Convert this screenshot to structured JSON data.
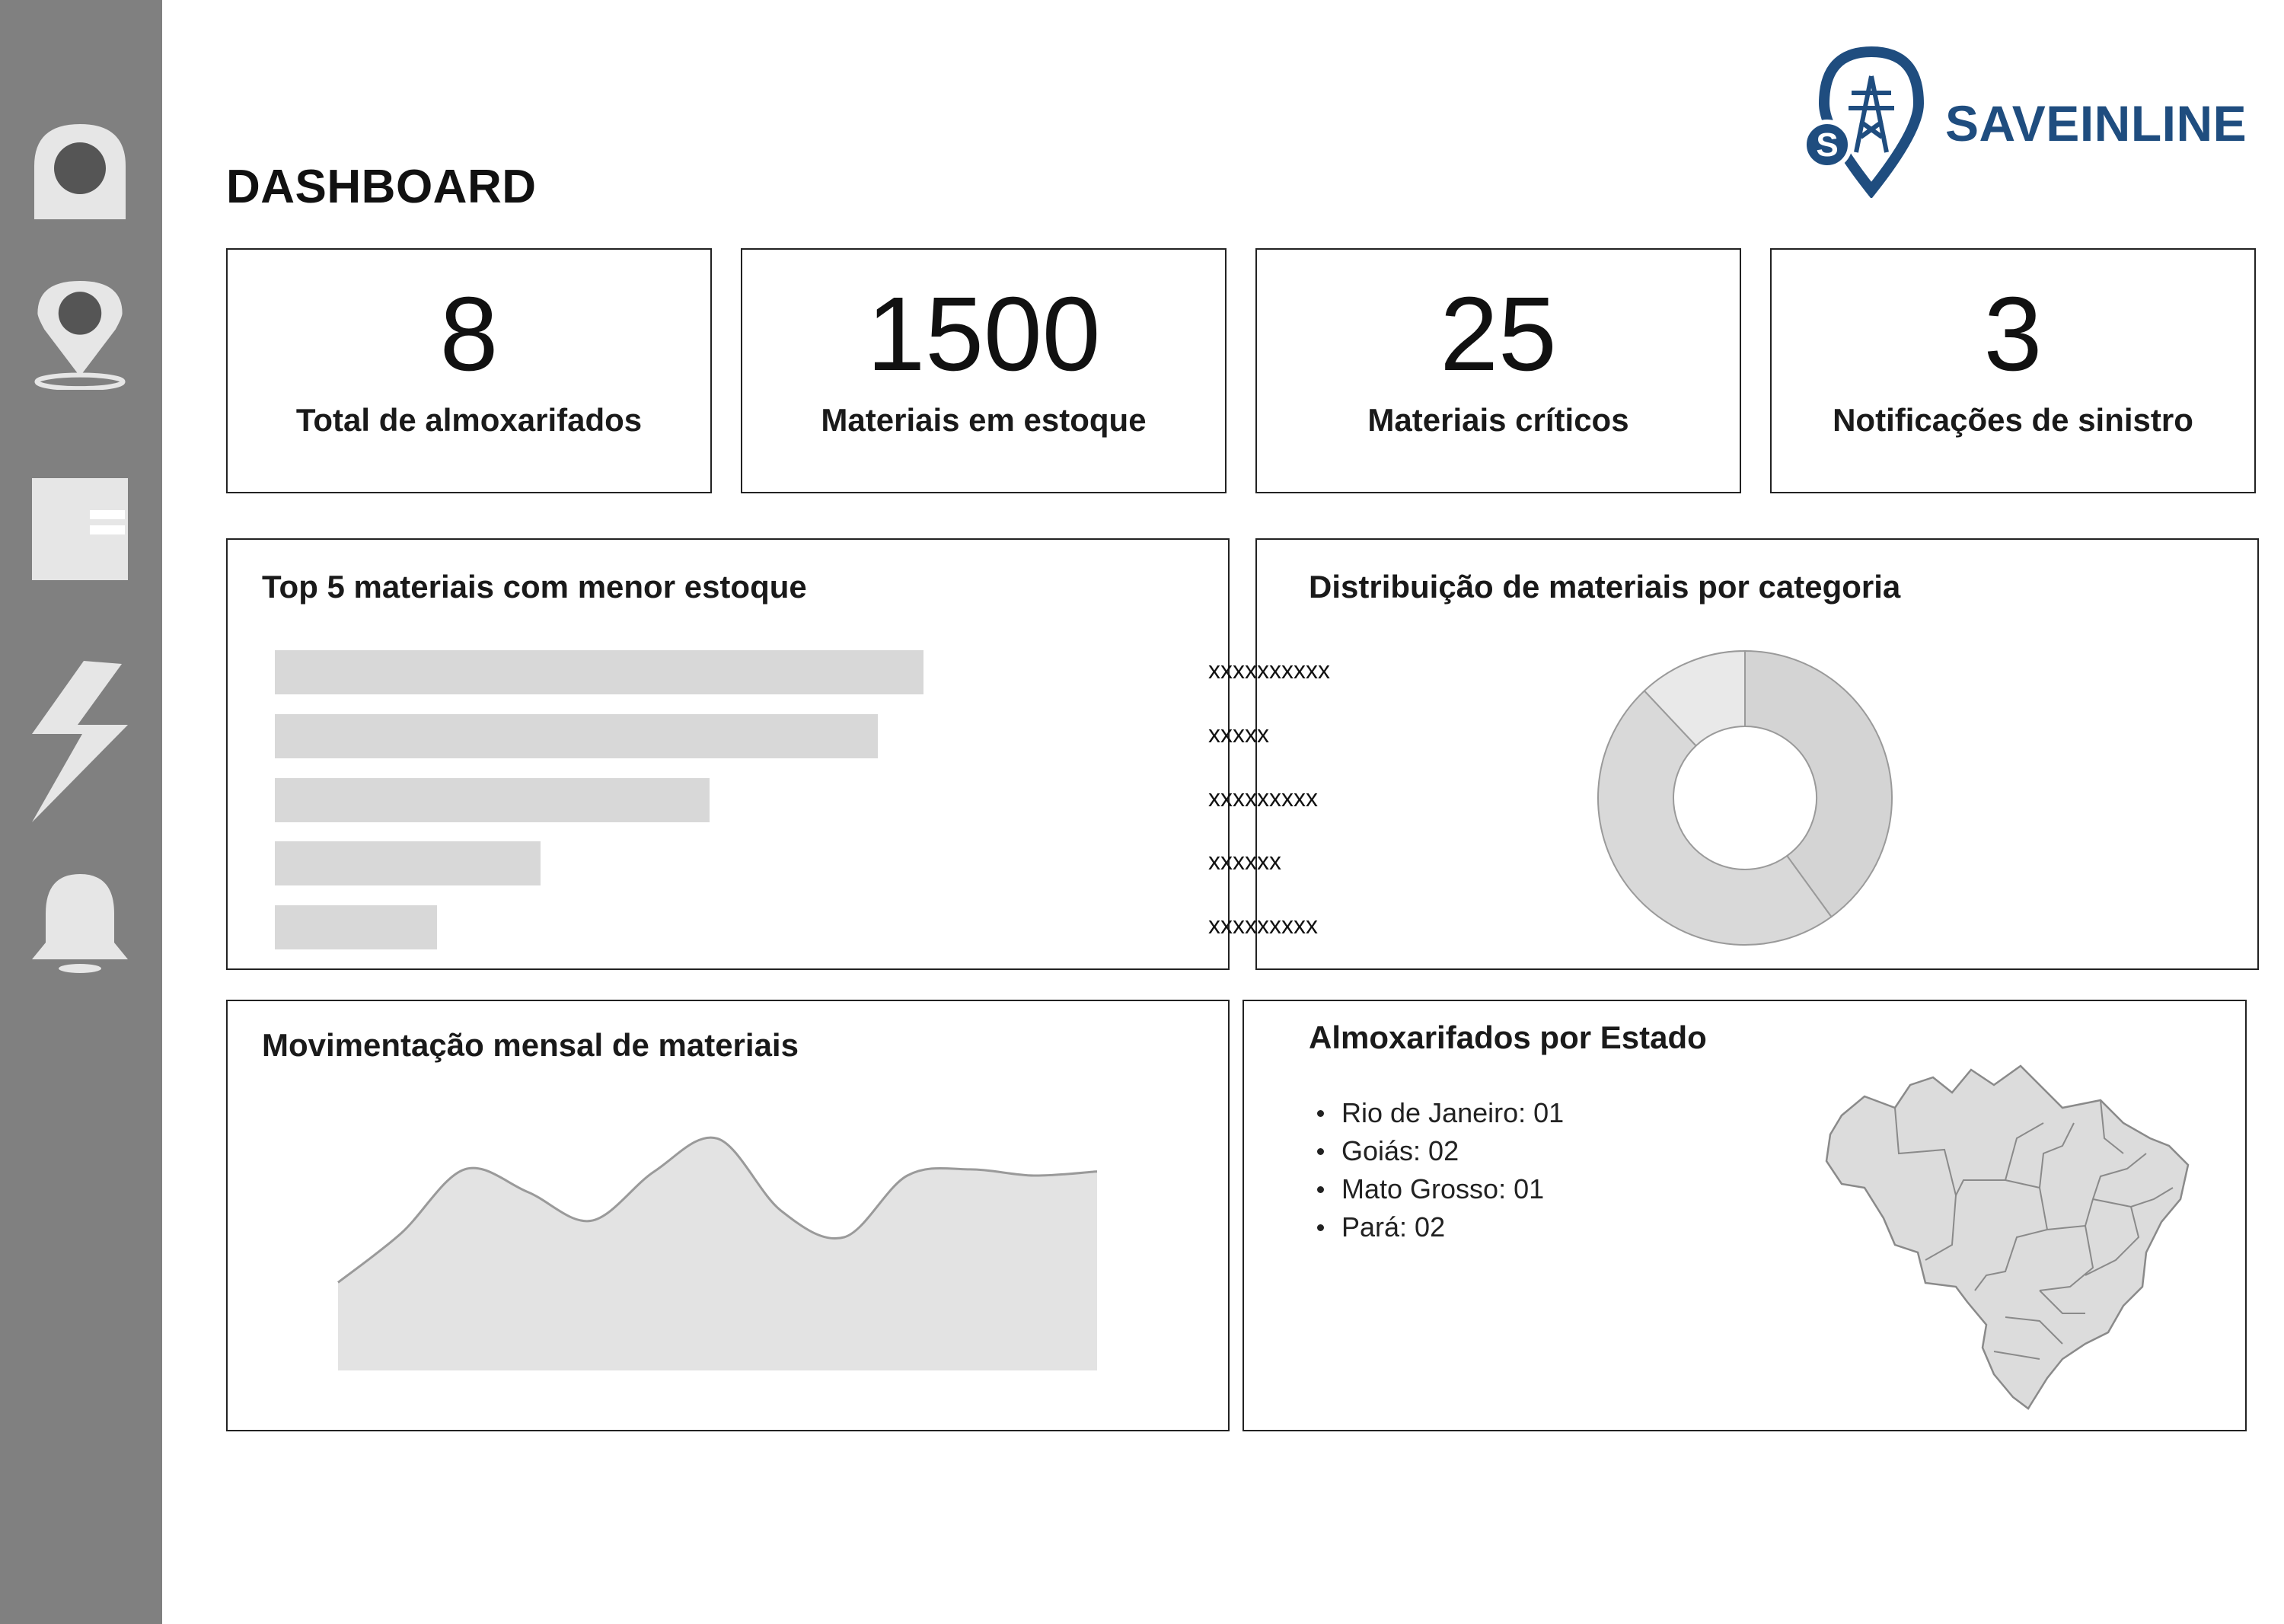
{
  "sidebar": {
    "icons": [
      "user-icon",
      "map-pin-icon",
      "inventory-icon",
      "lightning-icon",
      "bell-icon"
    ]
  },
  "page": {
    "title": "DASHBOARD"
  },
  "brand": {
    "name": "SAVEINLINE",
    "color": "#1f4d7f"
  },
  "kpis": [
    {
      "value": "8",
      "label": "Total de almoxarifados"
    },
    {
      "value": "1500",
      "label": "Materiais em estoque"
    },
    {
      "value": "25",
      "label": "Materiais críticos"
    },
    {
      "value": "3",
      "label": "Notificações de sinistro"
    }
  ],
  "charts": {
    "top5": {
      "title": "Top 5 materiais com menor estoque",
      "chart_data": {
        "type": "bar",
        "orientation": "horizontal",
        "categories": [
          "xxxxxxxxxx",
          "xxxxx",
          "xxxxxxxxx",
          "xxxxxx",
          "xxxxxxxxx"
        ],
        "values": [
          100,
          93,
          67,
          41,
          25
        ]
      }
    },
    "distribuicao": {
      "title": "Distribuição de materiais por categoria",
      "chart_data": {
        "type": "pie",
        "style": "donut",
        "values": [
          40,
          48,
          12
        ],
        "colors": [
          "#d4d4d4",
          "#d9d9d9",
          "#e9e9e9"
        ]
      }
    },
    "movimentacao": {
      "title": "Movimentação mensal de materiais",
      "chart_data": {
        "type": "area",
        "x": [
          0,
          1,
          2,
          3,
          4,
          5,
          6,
          7,
          8,
          9,
          10,
          11,
          12
        ],
        "values": [
          28,
          52,
          83,
          72,
          58,
          82,
          98,
          63,
          50,
          80,
          83,
          80,
          82
        ]
      }
    },
    "estado": {
      "title": "Almoxarifados por Estado",
      "items": [
        "Rio de Janeiro: 01",
        "Goiás: 02",
        "Mato Grosso: 01",
        "Pará: 02"
      ]
    }
  }
}
